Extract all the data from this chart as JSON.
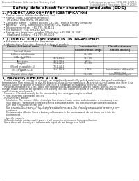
{
  "header_left": "Product Name: Lithium Ion Battery Cell",
  "header_right_line1": "Substance number: SDS-LIB-00010",
  "header_right_line2": "Established / Revision: Dec.7 2009",
  "title": "Safety data sheet for chemical products (SDS)",
  "section1_title": "1. PRODUCT AND COMPANY IDENTIFICATION",
  "section1_lines": [
    "  • Product name: Lithium Ion Battery Cell",
    "  • Product code: Cylindrical-type cell",
    "      IMI18650, IMI18650L, IMI18650A",
    "  • Company name:    Bango Electric Co., Ltd.  Mobile Energy Company",
    "  • Address:    2201, Kamimikura, Sumoto City, Hyogo, Japan",
    "  • Telephone number:  +81-799-26-4111",
    "  • Fax number:  +81-799-26-4120",
    "  • Emergency telephone number (Weekday) +81-799-26-3042",
    "      (Night and holiday) +81-799-26-4101"
  ],
  "section2_title": "2. COMPOSITION / INFORMATION ON INGREDIENTS",
  "section2_intro": "  • Substance or preparation: Preparation",
  "section2_sub": "  • Information about the chemical nature of product:",
  "table_headers": [
    "Chemical/chemical name",
    "CAS number",
    "Concentration /\nConcentration range",
    "Classification and\nhazard labeling"
  ],
  "table_rows": [
    [
      "Several Name",
      "",
      "",
      ""
    ],
    [
      "Lithium cobalt oxide\n(LiMn-CoNiO2)",
      "-",
      "30-60%",
      "-"
    ],
    [
      "Iron",
      "7439-89-6",
      "10-20%",
      "-"
    ],
    [
      "Aluminum",
      "7429-90-5",
      "2-5%",
      "-"
    ],
    [
      "Graphite\n(Mixed in graphite-1)\n(IM-80 graphite-1)",
      "7782-42-5\n7782-44-2",
      "10-25%",
      "-"
    ],
    [
      "Copper",
      "7440-50-8",
      "5-15%",
      "Sensitization of the skin\ngroup R42"
    ],
    [
      "Organic electrolyte",
      "-",
      "10-20%",
      "Inflammable liquid"
    ]
  ],
  "section3_title": "3. HAZARDS IDENTIFICATION",
  "section3_body": [
    "   For the battery cell, chemical materials are stored in a hermetically sealed metal case, designed to withstand",
    "temperatures from minus-40 to plus-60 degrees Celsius during normal use. As a result, during normal use, there is no",
    "physical danger of ignition or explosion and there is no danger of hazardous materials leakage.",
    "   However, if exposed to a fire, added mechanical shocks, decomposed, written electric without any measures,",
    "the gas nozzle vent can be operated. The battery cell case will be breached of the extreme, hazardous",
    "materials may be released.",
    "   Moreover, if heated strongly by the surrounding fire, some gas may be emitted.",
    "",
    "  • Most important hazard and effects:",
    "   Human health effects:",
    "      Inhalation: The release of the electrolyte has an anesthesia action and stimulates a respiratory tract.",
    "      Skin contact: The release of the electrolyte stimulates a skin. The electrolyte skin contact causes a",
    "      sore and stimulation on the skin.",
    "      Eye contact: The release of the electrolyte stimulates eyes. The electrolyte eye contact causes a sore",
    "      and stimulation on the eye. Especially, a substance that causes a strong inflammation of the eye is",
    "      cautioned.",
    "      Environmental effects: Since a battery cell remains in the environment, do not throw out it into the",
    "      environment.",
    "",
    "  • Specific hazards:",
    "   If the electrolyte contacts with water, it will generate detrimental hydrogen fluoride.",
    "   Since the used electrolyte is inflammable liquid, do not bring close to fire."
  ],
  "bg_color": "#ffffff",
  "text_color": "#333333",
  "header_color": "#666666",
  "title_color": "#000000",
  "section_title_color": "#000000",
  "line_color": "#888888",
  "table_header_bg": "#d8d8d8"
}
